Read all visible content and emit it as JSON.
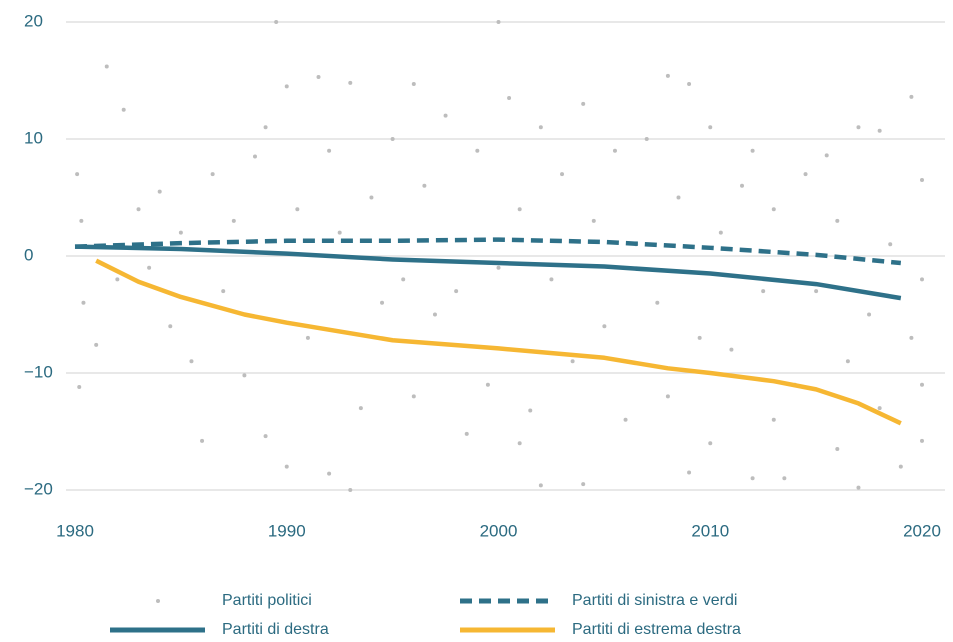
{
  "chart_data": {
    "type": "scatter-line",
    "xlim": [
      1980,
      2020
    ],
    "xticks": [
      1980,
      1990,
      2000,
      2010,
      2020
    ],
    "ylim": [
      -20,
      20
    ],
    "yticks": [
      {
        "value": -20,
        "label": "−20"
      },
      {
        "value": -10,
        "label": "−10"
      },
      0,
      10,
      20
    ],
    "grid": true,
    "series": [
      {
        "name": "Partiti politici",
        "kind": "scatter",
        "color": "#bdbdbd",
        "x": [
          1980.1,
          1980.2,
          1980.3,
          1980.4,
          1981,
          1981.5,
          1982.3,
          1982,
          1983,
          1983.5,
          1984,
          1984.5,
          1985,
          1985.5,
          1986,
          1986.5,
          1987,
          1987.5,
          1988,
          1988.5,
          1989,
          1989,
          1989.5,
          1990,
          1990,
          1990.5,
          1991,
          1991.5,
          1992,
          1992,
          1992.5,
          1993,
          1993,
          1993.5,
          1994,
          1994.5,
          1995,
          1995.5,
          1996,
          1996,
          1996.5,
          1997,
          1997.5,
          1998,
          1998.5,
          1999,
          1999.5,
          2000,
          2000,
          2000.5,
          2001,
          2001,
          2001.5,
          2002,
          2002,
          2002.5,
          2003,
          2003.5,
          2004,
          2004,
          2004.5,
          2005,
          2005.5,
          2006,
          2006.5,
          2007,
          2007.5,
          2008,
          2008,
          2008.5,
          2009,
          2009,
          2009.5,
          2010,
          2010,
          2010.5,
          2011,
          2011.5,
          2012,
          2012,
          2012.5,
          2013,
          2013,
          2013.5,
          2014,
          2014.5,
          2015,
          2015.5,
          2016,
          2016,
          2016.5,
          2017,
          2017,
          2017.5,
          2018,
          2018,
          2018.5,
          2019,
          2019.5,
          2019.5,
          2020,
          2020,
          2020,
          2020
        ],
        "values": [
          7,
          -11.2,
          3,
          -4,
          -7.6,
          16.2,
          12.5,
          -2,
          4,
          -1,
          5.5,
          -6,
          2,
          -9,
          -15.8,
          7,
          -3,
          3,
          -10.2,
          8.5,
          11,
          -15.4,
          20,
          -18,
          14.5,
          4,
          -7,
          15.3,
          -18.6,
          9,
          2,
          -20,
          14.8,
          -13,
          5,
          -4,
          10,
          -2,
          14.7,
          -12,
          6,
          -5,
          12,
          -3,
          -15.2,
          9,
          -11,
          20,
          -1,
          13.5,
          -16,
          4,
          -13.2,
          11,
          -19.6,
          -2,
          7,
          -9,
          13,
          -19.5,
          3,
          -6,
          9,
          -14,
          1,
          10,
          -4,
          15.4,
          -12,
          5,
          14.7,
          -18.5,
          -7,
          11,
          -16,
          2,
          -8,
          6,
          -19,
          9,
          -3,
          -14,
          4,
          -19,
          -11,
          7,
          -3,
          8.6,
          -16.5,
          3,
          -9,
          11,
          -19.8,
          -5,
          10.7,
          -13,
          1,
          -18,
          13.6,
          -7,
          -15.8,
          6.5,
          -2,
          -11
        ]
      },
      {
        "name": "Partiti di sinistra e verdi",
        "kind": "dashed",
        "color": "#2e7189",
        "x": [
          1980,
          1985,
          1990,
          1995,
          2000,
          2005,
          2010,
          2015,
          2019
        ],
        "values": [
          0.8,
          1.1,
          1.3,
          1.3,
          1.4,
          1.2,
          0.7,
          0.1,
          -0.6
        ]
      },
      {
        "name": "Partiti di destra",
        "kind": "line",
        "color": "#2e7189",
        "x": [
          1980,
          1985,
          1990,
          1995,
          2000,
          2005,
          2010,
          2015,
          2019
        ],
        "values": [
          0.8,
          0.6,
          0.2,
          -0.3,
          -0.6,
          -0.9,
          -1.5,
          -2.4,
          -3.6
        ]
      },
      {
        "name": "Partiti di estrema destra",
        "kind": "line",
        "color": "#f6b733",
        "x": [
          1981,
          1983,
          1985,
          1988,
          1990,
          1995,
          2000,
          2005,
          2008,
          2010,
          2013,
          2015,
          2017,
          2019
        ],
        "values": [
          -0.4,
          -2.2,
          -3.5,
          -5,
          -5.7,
          -7.2,
          -7.9,
          -8.7,
          -9.6,
          -10,
          -10.7,
          -11.4,
          -12.6,
          -14.3
        ]
      }
    ]
  }
}
